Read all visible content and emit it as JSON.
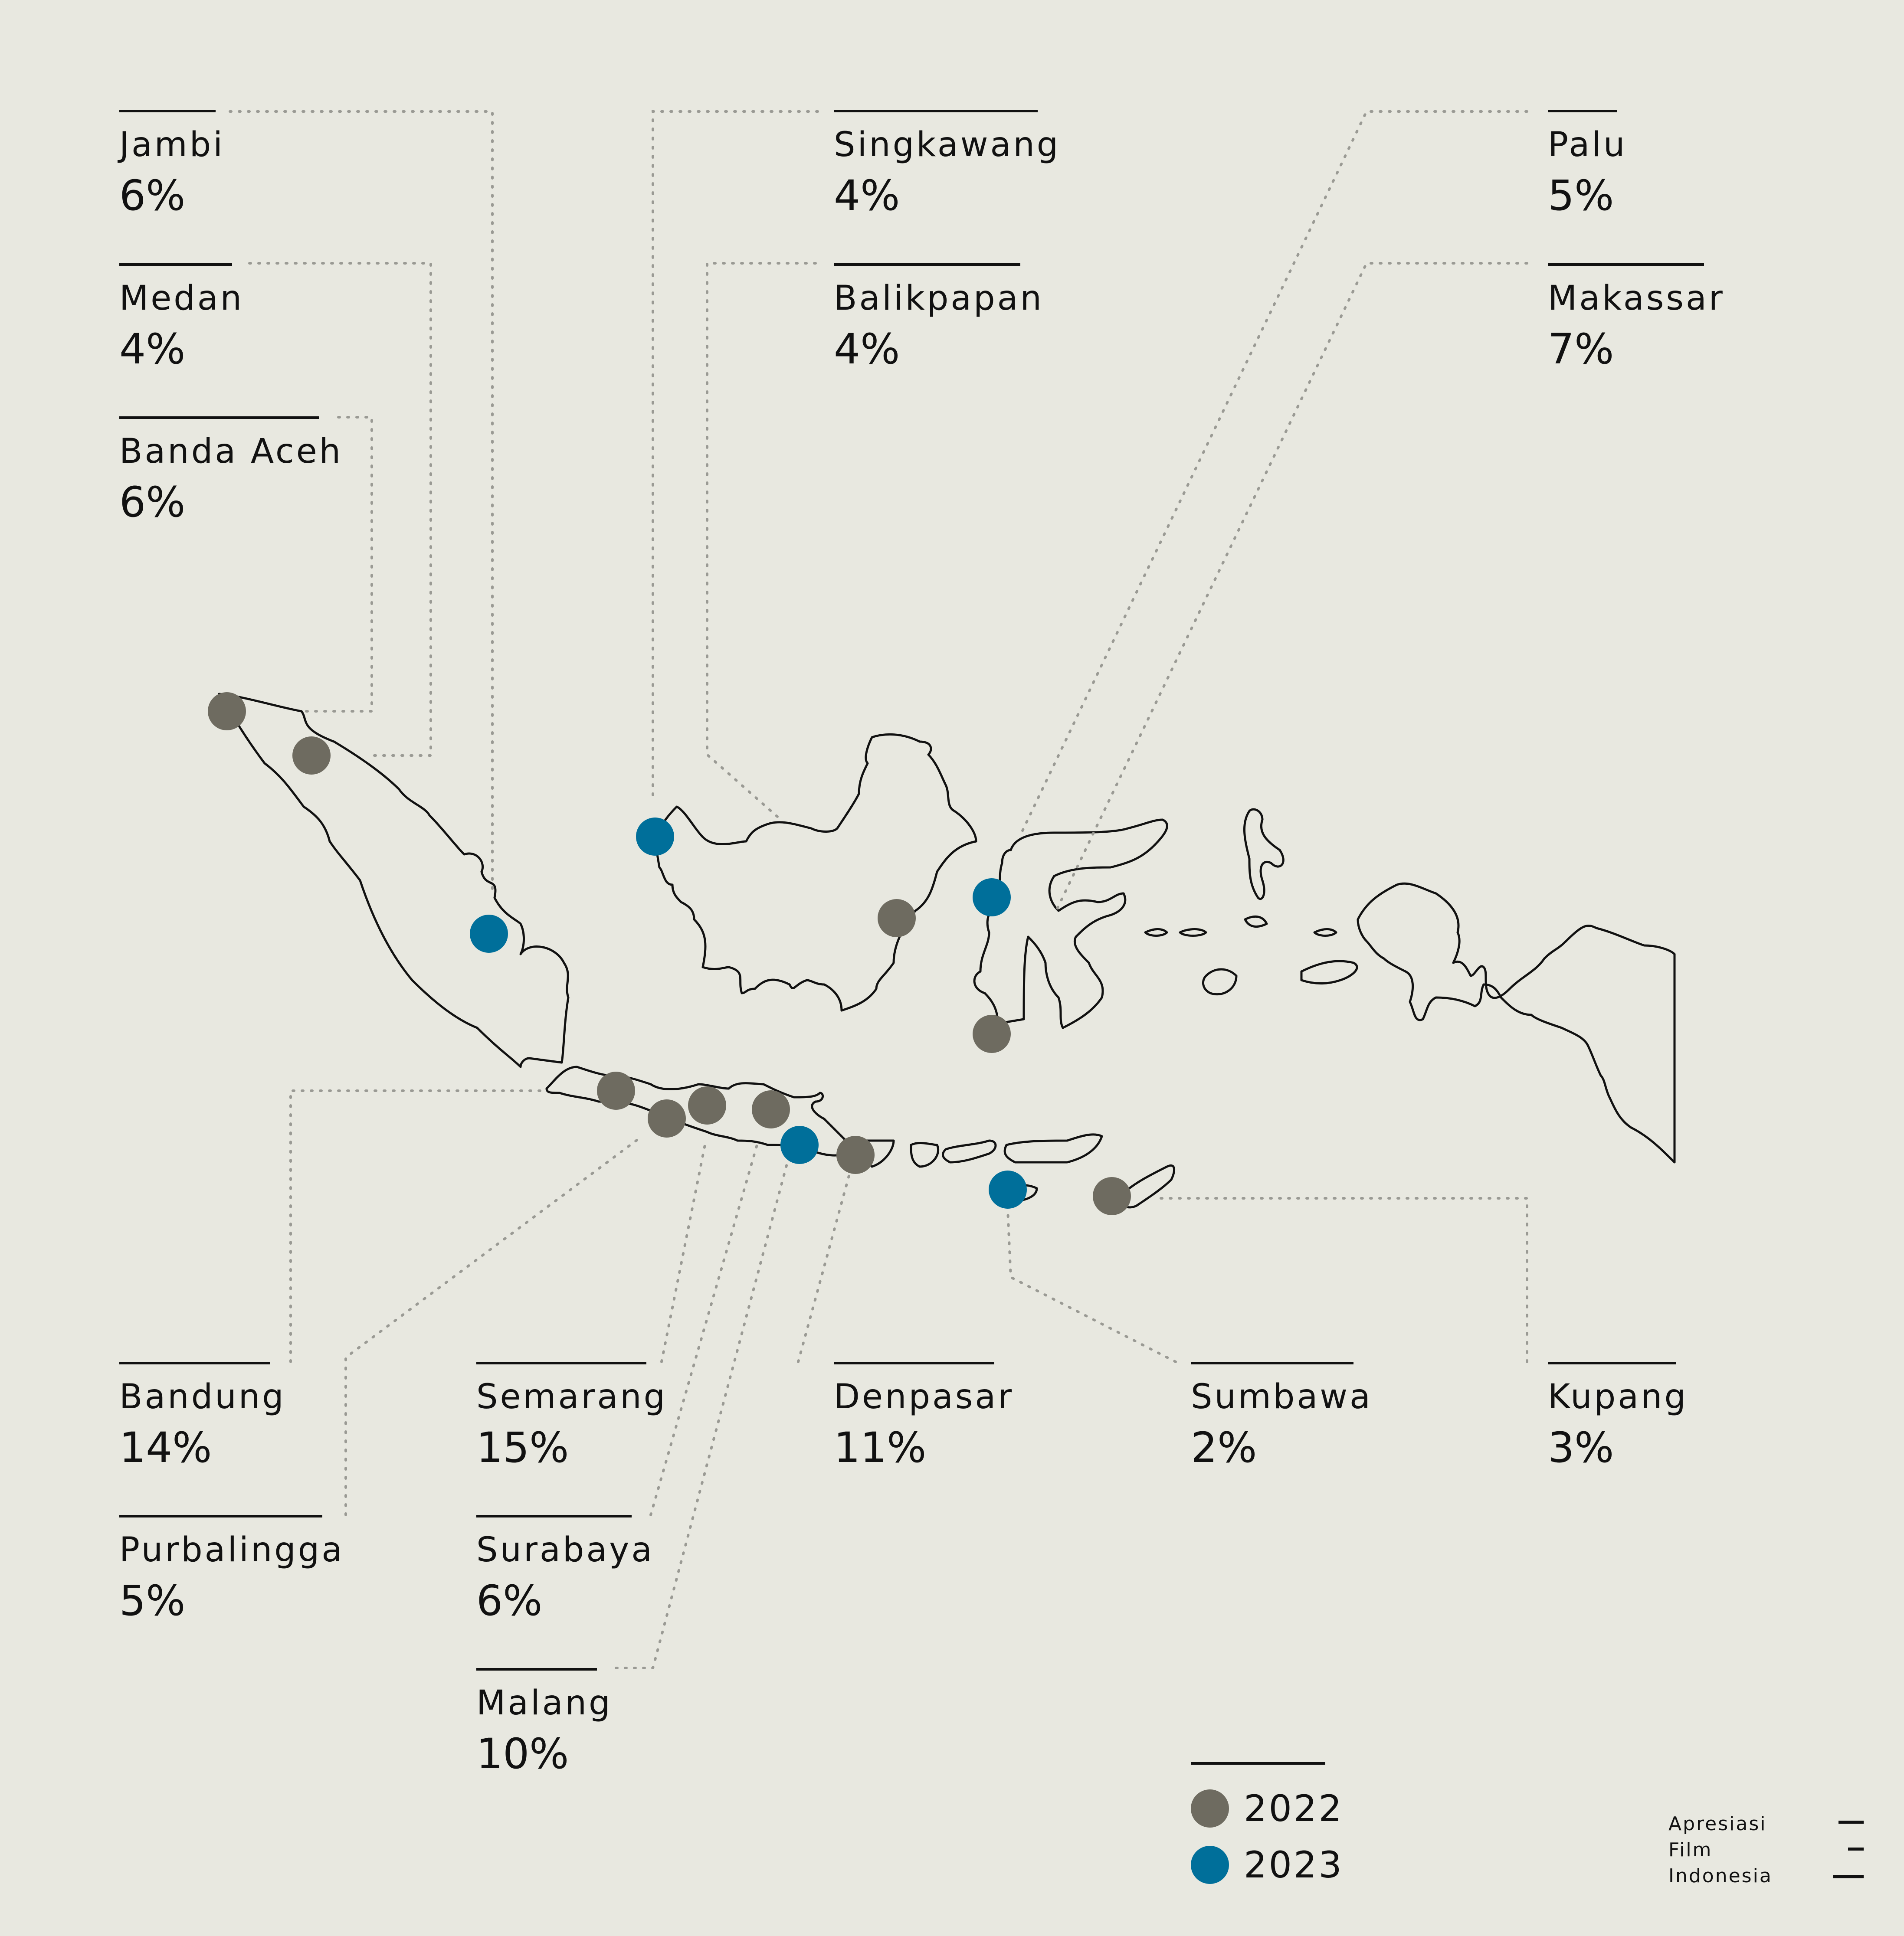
{
  "colors": {
    "background": "#e8e8e0",
    "year_2022": "#6e6b60",
    "year_2023": "#006f9a",
    "outline": "#111111",
    "leader": "#9a9a94"
  },
  "legend": [
    {
      "year": "2022",
      "color": "#6e6b60"
    },
    {
      "year": "2023",
      "color": "#006f9a"
    }
  ],
  "cities": [
    {
      "name": "Jambi",
      "pct": "6%",
      "year": "2023"
    },
    {
      "name": "Medan",
      "pct": "4%",
      "year": "2022"
    },
    {
      "name": "Banda Aceh",
      "pct": "6%",
      "year": "2022"
    },
    {
      "name": "Singkawang",
      "pct": "4%",
      "year": "2023"
    },
    {
      "name": "Balikpapan",
      "pct": "4%",
      "year": "2022"
    },
    {
      "name": "Palu",
      "pct": "5%",
      "year": "2023"
    },
    {
      "name": "Makassar",
      "pct": "7%",
      "year": "2022"
    },
    {
      "name": "Bandung",
      "pct": "14%",
      "year": "2022"
    },
    {
      "name": "Purbalingga",
      "pct": "5%",
      "year": "2022"
    },
    {
      "name": "Semarang",
      "pct": "15%",
      "year": "2022"
    },
    {
      "name": "Surabaya",
      "pct": "6%",
      "year": "2022"
    },
    {
      "name": "Malang",
      "pct": "10%",
      "year": "2023"
    },
    {
      "name": "Denpasar",
      "pct": "11%",
      "year": "2022"
    },
    {
      "name": "Sumbawa",
      "pct": "2%",
      "year": "2023"
    },
    {
      "name": "Kupang",
      "pct": "3%",
      "year": "2022"
    }
  ],
  "logo": {
    "line1": "Apresiasi",
    "line2": "Film",
    "line3": "Indonesia"
  }
}
